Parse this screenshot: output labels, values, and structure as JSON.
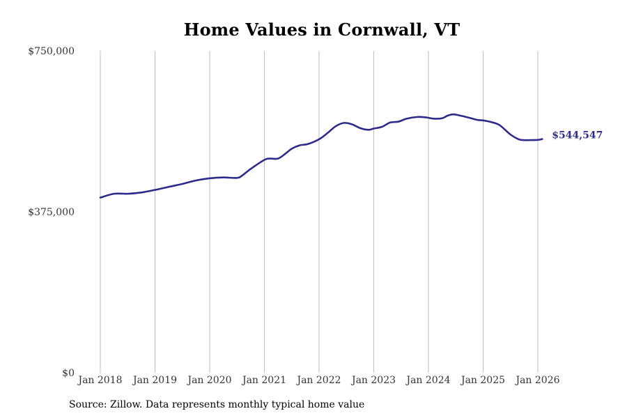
{
  "chart_data": {
    "type": "line",
    "title": "Home Values in Cornwall, VT",
    "xlabel": "",
    "ylabel": "",
    "ylim": [
      0,
      750000
    ],
    "y_ticks": [
      {
        "value": 0,
        "label": "$0"
      },
      {
        "value": 375000,
        "label": "$375,000"
      },
      {
        "value": 750000,
        "label": "$750,000"
      }
    ],
    "x_ticks": [
      {
        "value": 2018.0,
        "label": "Jan 2018"
      },
      {
        "value": 2019.0,
        "label": "Jan 2019"
      },
      {
        "value": 2020.0,
        "label": "Jan 2020"
      },
      {
        "value": 2021.0,
        "label": "Jan 2021"
      },
      {
        "value": 2022.0,
        "label": "Jan 2022"
      },
      {
        "value": 2023.0,
        "label": "Jan 2023"
      },
      {
        "value": 2024.0,
        "label": "Jan 2024"
      },
      {
        "value": 2025.0,
        "label": "Jan 2025"
      },
      {
        "value": 2026.0,
        "label": "Jan 2026"
      }
    ],
    "xlim": [
      2017.78,
      2026.53
    ],
    "grid": "vertical",
    "series": [
      {
        "name": "Typical home value",
        "color": "#2e2a8c",
        "x": [
          2018.0,
          2018.25,
          2018.5,
          2018.75,
          2019.0,
          2019.25,
          2019.5,
          2019.75,
          2020.0,
          2020.25,
          2020.5,
          2020.6,
          2020.75,
          2021.0,
          2021.1,
          2021.25,
          2021.4,
          2021.5,
          2021.65,
          2021.8,
          2022.0,
          2022.15,
          2022.3,
          2022.45,
          2022.6,
          2022.75,
          2022.9,
          2023.0,
          2023.15,
          2023.3,
          2023.45,
          2023.6,
          2023.8,
          2023.95,
          2024.1,
          2024.25,
          2024.35,
          2024.45,
          2024.55,
          2024.75,
          2024.9,
          2025.0,
          2025.15,
          2025.3,
          2025.5,
          2025.65,
          2025.75,
          2025.85,
          2026.0,
          2026.08
        ],
        "values": [
          408000,
          417000,
          417000,
          420000,
          426000,
          433000,
          440000,
          448000,
          453000,
          455000,
          454000,
          460000,
          475000,
          496000,
          499000,
          499000,
          512000,
          522000,
          530000,
          533000,
          544000,
          558000,
          574000,
          582000,
          579000,
          570000,
          566000,
          569000,
          573000,
          583000,
          585000,
          592000,
          596000,
          595000,
          592000,
          593000,
          599000,
          602000,
          600000,
          594000,
          589000,
          588000,
          584000,
          577000,
          555000,
          544000,
          542000,
          542000,
          542500,
          544547
        ]
      }
    ],
    "end_label": "$544,547"
  },
  "source_note": "Source: Zillow. Data represents monthly typical home value"
}
